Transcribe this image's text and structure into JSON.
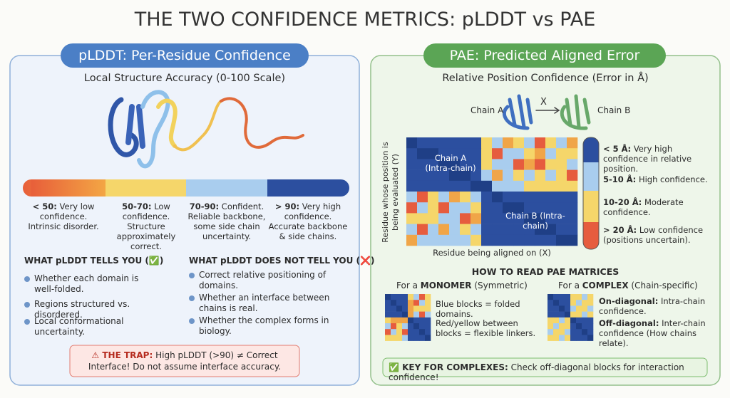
{
  "title": "THE TWO CONFIDENCE METRICS: pLDDT vs PAE",
  "plddt": {
    "header": "pLDDT: Per-Residue Confidence",
    "subtitle": "Local Structure Accuracy (0-100 Scale)",
    "scale": [
      {
        "range": "< 50:",
        "text": "Very low confidence. Intrinsic disorder."
      },
      {
        "range": "50-70:",
        "text": "Low confidence. Structure approximately correct."
      },
      {
        "range": "70-90:",
        "text": "Confident. Reliable backbone, some side chain uncertainty."
      },
      {
        "range": "> 90:",
        "text": "Very high confidence. Accurate backbone & side chains."
      }
    ],
    "tells": {
      "title": "WHAT pLDDT TELLS YOU (✅)",
      "items": [
        "Whether each domain is well-folded.",
        "Regions structured vs. disordered.",
        "Local conformational uncertainty."
      ]
    },
    "not_tells": {
      "title": "WHAT pLDDT DOES NOT TELL YOU (❌)",
      "items": [
        "Correct relative positioning of domains.",
        "Whether an interface between chains is real.",
        "Whether the complex forms in biology."
      ]
    },
    "trap": {
      "bold": "⚠ THE TRAP:",
      "text": "High pLDDT (>90) ≠ Correct Interface! Do not assume interface accuracy."
    }
  },
  "pae": {
    "header": "PAE: Predicted Aligned Error",
    "subtitle": "Relative Position Confidence (Error in Å)",
    "chain_a": "Chain A",
    "cross": "X",
    "chain_b": "Chain B",
    "block_a": "Chain A (Intra-chain)",
    "block_b": "Chain B (Intra-chain)",
    "y_label": "Residue whose position is being evaluated (Y)",
    "x_label": "Residue being aligned on (X)",
    "legend": [
      {
        "range": "< 5 Å:",
        "text": "Very high confidence in relative position."
      },
      {
        "range": "5-10 Å:",
        "text": "High confidence."
      },
      {
        "range": "10-20 Å:",
        "text": "Moderate confidence."
      },
      {
        "range": "> 20 Å:",
        "text": "Low confidence (positions uncertain)."
      }
    ],
    "how_to_read": "HOW TO READ PAE MATRICES",
    "monomer": {
      "caption_pre": "For a",
      "caption_bold": "MONOMER",
      "caption_post": "(Symmetric)",
      "items": [
        "Blue blocks = folded domains.",
        "Red/yellow between blocks = flexible linkers."
      ]
    },
    "complex": {
      "caption_pre": "For a",
      "caption_bold": "COMPLEX",
      "caption_post": "(Chain-specific)",
      "items": [
        {
          "bold": "On-diagonal:",
          "text": "Intra-chain confidence."
        },
        {
          "bold": "Off-diagonal:",
          "text": "Inter-chain confidence (How chains relate)."
        }
      ]
    },
    "key": {
      "bold": "✅ KEY FOR COMPLEXES:",
      "text": "Check off-diagonal blocks for interaction confidence!"
    }
  }
}
